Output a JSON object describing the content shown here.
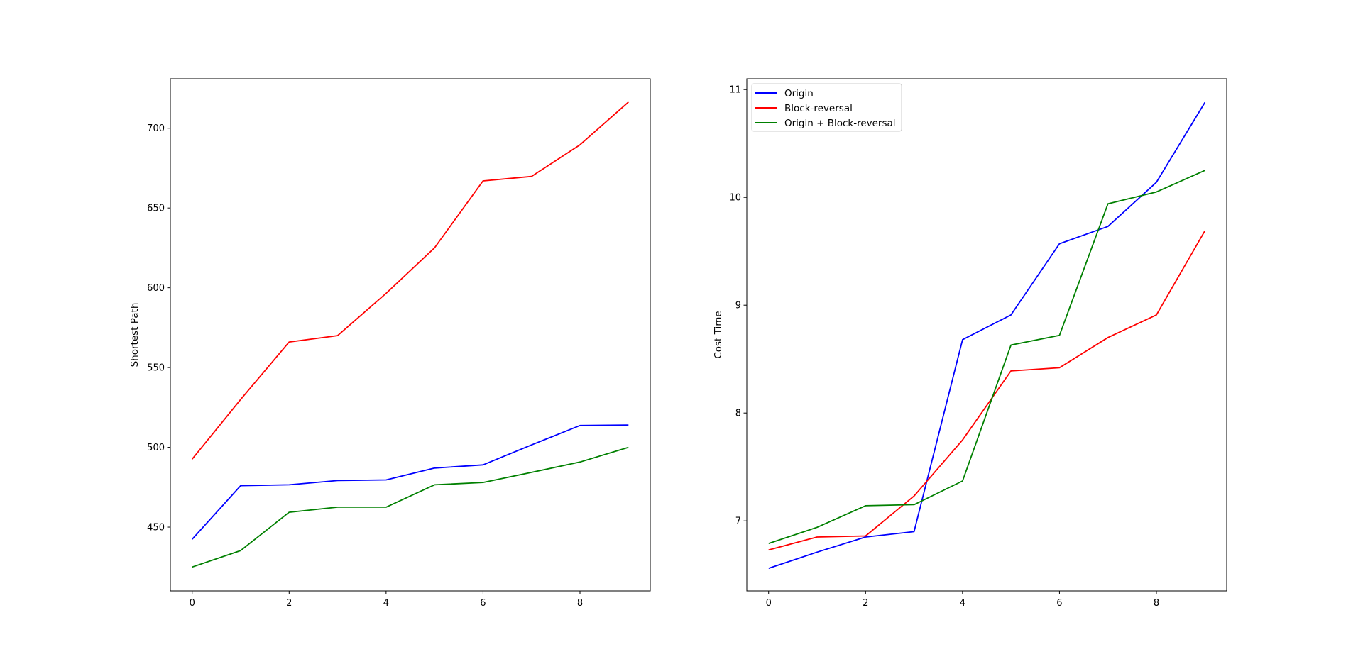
{
  "chart_data": [
    {
      "type": "line",
      "title": "",
      "xlabel": "",
      "ylabel": "Shortest Path",
      "x": [
        0,
        1,
        2,
        3,
        4,
        5,
        6,
        7,
        8,
        9
      ],
      "xlim": [
        -0.45,
        9.45
      ],
      "ylim": [
        410,
        731
      ],
      "xticks": [
        0,
        2,
        4,
        6,
        8
      ],
      "yticks": [
        450,
        500,
        550,
        600,
        650,
        700
      ],
      "grid": false,
      "legend": null,
      "series": [
        {
          "name": "Origin",
          "color": "#0000ff",
          "values": [
            442.4,
            476,
            476.5,
            479.2,
            479.6,
            487,
            489,
            501.5,
            513.7,
            514
          ]
        },
        {
          "name": "Block-reversal",
          "color": "#ff0000",
          "values": [
            492.6,
            530,
            566,
            570,
            596.5,
            625,
            667,
            669.8,
            689.6,
            716.4
          ]
        },
        {
          "name": "Origin + Block-reversal",
          "color": "#008000",
          "values": [
            425,
            435.3,
            459.3,
            462.5,
            462.5,
            476.5,
            478,
            484.3,
            490.8,
            500
          ]
        }
      ]
    },
    {
      "type": "line",
      "title": "",
      "xlabel": "",
      "ylabel": "Cost Time",
      "x": [
        0,
        1,
        2,
        3,
        4,
        5,
        6,
        7,
        8,
        9
      ],
      "xlim": [
        -0.45,
        9.45
      ],
      "ylim": [
        6.35,
        11.1
      ],
      "xticks": [
        0,
        2,
        4,
        6,
        8
      ],
      "yticks": [
        7,
        8,
        9,
        10,
        11
      ],
      "grid": false,
      "legend": "top-left",
      "series": [
        {
          "name": "Origin",
          "color": "#0000ff",
          "values": [
            6.56,
            6.71,
            6.85,
            6.9,
            8.68,
            8.91,
            9.57,
            9.73,
            10.14,
            10.88
          ]
        },
        {
          "name": "Block-reversal",
          "color": "#ff0000",
          "values": [
            6.73,
            6.85,
            6.86,
            7.23,
            7.75,
            8.39,
            8.42,
            8.7,
            8.91,
            9.69
          ]
        },
        {
          "name": "Origin + Block-reversal",
          "color": "#008000",
          "values": [
            6.79,
            6.94,
            7.14,
            7.15,
            7.37,
            8.63,
            8.72,
            9.94,
            10.05,
            10.25
          ]
        }
      ]
    }
  ]
}
